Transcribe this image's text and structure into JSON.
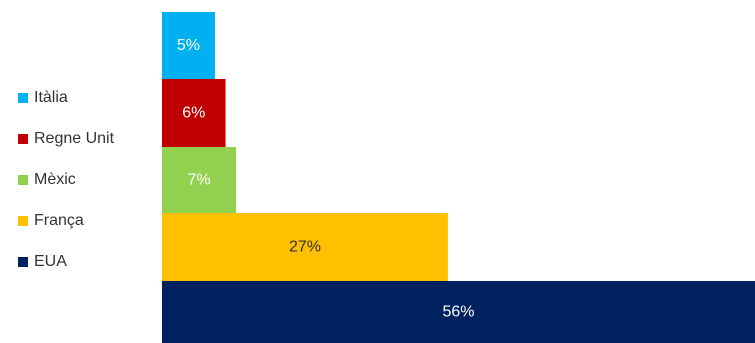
{
  "chart_data": {
    "type": "bar",
    "orientation": "horizontal-stacked-steps",
    "categories": [
      "Itàlia",
      "Regne Unit",
      "Mèxic",
      "França",
      "EUA"
    ],
    "values": [
      5,
      6,
      7,
      27,
      56
    ],
    "data_labels": [
      "5%",
      "6%",
      "7%",
      "27%",
      "56%"
    ],
    "colors": [
      "#00B0F0",
      "#C00000",
      "#92D050",
      "#FFC000",
      "#002060"
    ],
    "label_colors": [
      "#ffffff",
      "#ffffff",
      "#ffffff",
      "#333333",
      "#ffffff"
    ],
    "unit": "%",
    "legend_position": "left",
    "xlim": [
      0,
      56
    ],
    "grid": false
  }
}
